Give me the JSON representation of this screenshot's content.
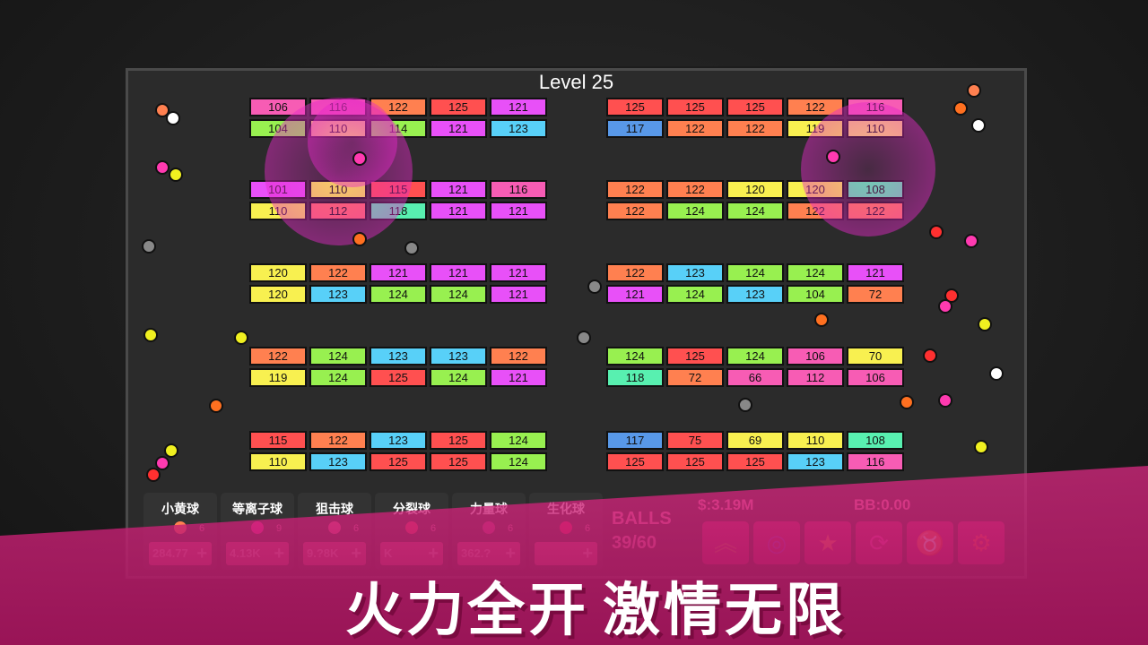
{
  "level_title": "Level 25",
  "palette": {
    "pink": "#f75cb4",
    "orange": "#ff8050",
    "red": "#ff5050",
    "magenta": "#e850f8",
    "green": "#98f050",
    "gold": "#f8e070",
    "cyan": "#58d0f8",
    "blue": "#5898e8",
    "yellow": "#f8f050",
    "teal": "#58f0b0",
    "salmon": "#ff7060"
  },
  "grids": [
    {
      "bricks": [
        [
          106,
          "pink"
        ],
        [
          116,
          "pink"
        ],
        [
          122,
          "orange"
        ],
        [
          125,
          "red"
        ],
        [
          121,
          "magenta"
        ],
        [
          104,
          "green"
        ],
        [
          110,
          "gold"
        ],
        [
          114,
          "green"
        ],
        [
          121,
          "magenta"
        ],
        [
          123,
          "cyan"
        ]
      ]
    },
    {
      "bricks": [
        [
          125,
          "red"
        ],
        [
          125,
          "red"
        ],
        [
          125,
          "red"
        ],
        [
          122,
          "orange"
        ],
        [
          116,
          "pink"
        ],
        [
          117,
          "blue"
        ],
        [
          122,
          "orange"
        ],
        [
          122,
          "orange"
        ],
        [
          119,
          "yellow"
        ],
        [
          110,
          "gold"
        ]
      ]
    },
    {
      "bricks": [
        [
          101,
          "magenta"
        ],
        [
          110,
          "yellow"
        ],
        [
          115,
          "red"
        ],
        [
          121,
          "magenta"
        ],
        [
          116,
          "pink"
        ],
        [
          110,
          "yellow"
        ],
        [
          112,
          "salmon"
        ],
        [
          118,
          "teal"
        ],
        [
          121,
          "magenta"
        ],
        [
          121,
          "magenta"
        ]
      ]
    },
    {
      "bricks": [
        [
          122,
          "orange"
        ],
        [
          122,
          "orange"
        ],
        [
          120,
          "yellow"
        ],
        [
          120,
          "yellow"
        ],
        [
          108,
          "teal"
        ],
        [
          122,
          "orange"
        ],
        [
          124,
          "green"
        ],
        [
          124,
          "green"
        ],
        [
          122,
          "orange"
        ],
        [
          122,
          "orange"
        ]
      ]
    },
    {
      "bricks": [
        [
          120,
          "yellow"
        ],
        [
          122,
          "orange"
        ],
        [
          121,
          "magenta"
        ],
        [
          121,
          "magenta"
        ],
        [
          121,
          "magenta"
        ],
        [
          120,
          "yellow"
        ],
        [
          123,
          "cyan"
        ],
        [
          124,
          "green"
        ],
        [
          124,
          "green"
        ],
        [
          121,
          "magenta"
        ]
      ]
    },
    {
      "bricks": [
        [
          122,
          "orange"
        ],
        [
          123,
          "cyan"
        ],
        [
          124,
          "green"
        ],
        [
          124,
          "green"
        ],
        [
          121,
          "magenta"
        ],
        [
          121,
          "magenta"
        ],
        [
          124,
          "green"
        ],
        [
          123,
          "cyan"
        ],
        [
          104,
          "green"
        ],
        [
          72,
          "orange"
        ]
      ]
    },
    {
      "bricks": [
        [
          122,
          "orange"
        ],
        [
          124,
          "green"
        ],
        [
          123,
          "cyan"
        ],
        [
          123,
          "cyan"
        ],
        [
          122,
          "orange"
        ],
        [
          119,
          "yellow"
        ],
        [
          124,
          "green"
        ],
        [
          125,
          "red"
        ],
        [
          124,
          "green"
        ],
        [
          121,
          "magenta"
        ]
      ]
    },
    {
      "bricks": [
        [
          124,
          "green"
        ],
        [
          125,
          "red"
        ],
        [
          124,
          "green"
        ],
        [
          106,
          "pink"
        ],
        [
          70,
          "yellow"
        ],
        [
          118,
          "teal"
        ],
        [
          72,
          "orange"
        ],
        [
          66,
          "pink"
        ],
        [
          112,
          "pink"
        ],
        [
          106,
          "pink"
        ]
      ]
    },
    {
      "bricks": [
        [
          115,
          "red"
        ],
        [
          122,
          "orange"
        ],
        [
          123,
          "cyan"
        ],
        [
          125,
          "red"
        ],
        [
          124,
          "green"
        ],
        [
          110,
          "yellow"
        ],
        [
          123,
          "cyan"
        ],
        [
          125,
          "red"
        ],
        [
          125,
          "red"
        ],
        [
          124,
          "green"
        ]
      ]
    },
    {
      "bricks": [
        [
          117,
          "blue"
        ],
        [
          75,
          "red"
        ],
        [
          69,
          "yellow"
        ],
        [
          110,
          "yellow"
        ],
        [
          108,
          "teal"
        ],
        [
          125,
          "red"
        ],
        [
          125,
          "red"
        ],
        [
          125,
          "red"
        ],
        [
          123,
          "cyan"
        ],
        [
          116,
          "pink"
        ]
      ]
    }
  ],
  "ball_types": [
    {
      "name": "小黄球",
      "count": "6",
      "price": "284.77",
      "color": "#ff8050",
      "icon": "ball-icon"
    },
    {
      "name": "等离子球",
      "count": "9",
      "price": "4.13K",
      "color": "#ff2ea0",
      "icon": "plasma-icon"
    },
    {
      "name": "狙击球",
      "count": "6",
      "price": "9.?8K",
      "color": "#f05c90",
      "icon": "plus-icon"
    },
    {
      "name": "分裂球",
      "count": "6",
      "price": "K",
      "color": "#f04060",
      "icon": "split-icon"
    },
    {
      "name": "力量球",
      "count": "6",
      "price": "362.?",
      "color": "#c04080",
      "icon": "power-icon"
    },
    {
      "name": "生化球",
      "count": "6",
      "price": "",
      "color": "#f02060",
      "icon": "biohazard-icon"
    }
  ],
  "plus_label": "+",
  "balls_label": "BALLS",
  "balls_count": "39/60",
  "money": "$:3.19M",
  "bb": "BB:0.00",
  "actions": [
    {
      "icon": "upgrade-chevrons-icon",
      "glyph": "︽",
      "color": "#c07050"
    },
    {
      "icon": "vortex-icon",
      "glyph": "◎",
      "color": "#9040c0"
    },
    {
      "icon": "stars-icon",
      "glyph": "★",
      "color": "#ff8050"
    },
    {
      "icon": "refresh-icon",
      "glyph": "⟳",
      "color": "#ff40b0"
    },
    {
      "icon": "strongman-icon",
      "glyph": "♉",
      "color": "#8030c0"
    },
    {
      "icon": "settings-gear-icon",
      "glyph": "⚙",
      "color": "#ff5040"
    }
  ],
  "slogan_1": "火力全开",
  "slogan_2": "激情无限"
}
